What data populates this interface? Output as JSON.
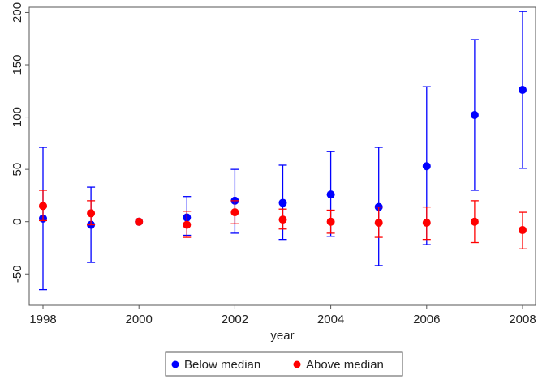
{
  "chart_data": {
    "type": "scatter",
    "title": "",
    "xlabel": "year",
    "ylabel": "",
    "x": [
      1998,
      1999,
      2000,
      2001,
      2002,
      2003,
      2004,
      2005,
      2006,
      2007,
      2008
    ],
    "xlim": [
      1998,
      2008
    ],
    "xticks": [
      "1998",
      "2000",
      "2002",
      "2004",
      "2006",
      "2008"
    ],
    "ylim": [
      -80,
      205
    ],
    "yticks": [
      "-50",
      "0",
      "50",
      "100",
      "150",
      "200"
    ],
    "grid": false,
    "error_bars": true,
    "legend_position": "bottom",
    "series": [
      {
        "name": "Below median",
        "color": "#0000ff",
        "values": [
          3,
          -3,
          0,
          4,
          20,
          18,
          26,
          14,
          53,
          102,
          126
        ],
        "ci_low": [
          -65,
          -39,
          0,
          -13,
          -11,
          -17,
          -14,
          -42,
          -22,
          30,
          51
        ],
        "ci_high": [
          71,
          33,
          0,
          24,
          50,
          54,
          67,
          71,
          129,
          174,
          201
        ]
      },
      {
        "name": "Above median",
        "color": "#ff0000",
        "values": [
          15,
          8,
          0,
          -3,
          9,
          2,
          0,
          -1,
          -1,
          0,
          -8
        ],
        "ci_low": [
          1,
          -3,
          0,
          -15,
          -2,
          -7,
          -11,
          -15,
          -17,
          -20,
          -26
        ],
        "ci_high": [
          30,
          20,
          0,
          10,
          20,
          12,
          11,
          14,
          14,
          20,
          9
        ]
      }
    ]
  }
}
